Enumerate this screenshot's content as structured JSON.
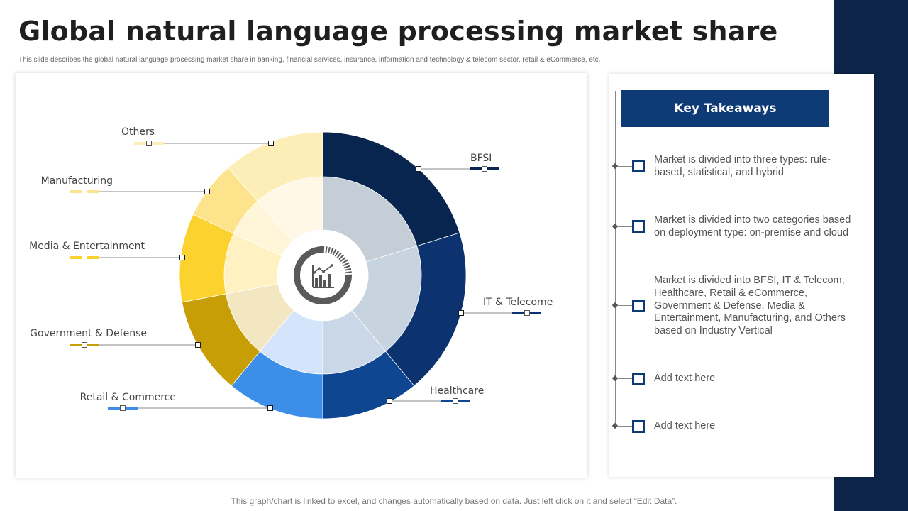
{
  "title": "Global natural language processing market share",
  "subtitle": "This slide describes the global natural language processing market share in banking,  financial services, insurance, information and technology & telecom sector, retail & eCommerce, etc.",
  "footer": "This graph/chart is linked to excel, and changes automatically based on data. Just left click on it and select “Edit Data”.",
  "center_icon": "chart-analytics-icon",
  "takeaways": {
    "title": "Key Takeaways",
    "items": [
      "Market is divided into three types: rule-based, statistical, and hybrid",
      "Market is divided into two categories based on deployment type: on-premise and cloud",
      "Market is divided into BFSI, IT & Telecom, Healthcare, Retail & eCommerce, Government & Defense, Media & Entertainment, Manufacturing, and Others based on Industry Vertical",
      "Add text here",
      "Add text here"
    ]
  },
  "chart_data": {
    "type": "pie",
    "variant": "sunburst",
    "series": [
      {
        "ring": "outer",
        "categories": [
          "BFSI",
          "IT & Telecome",
          "Healthcare",
          "Retail & Commerce",
          "Government & Defense",
          "Media & Entertainment",
          "Manufacturing",
          "Others"
        ],
        "values": [
          20.2,
          18.8,
          11.0,
          11.0,
          11.0,
          10.0,
          6.5,
          11.5
        ],
        "colors": [
          "#082550",
          "#0d3270",
          "#0e4691",
          "#3d8ee8",
          "#c79e05",
          "#fcd22f",
          "#fde38c",
          "#fdeeb8"
        ]
      },
      {
        "ring": "inner",
        "values": [
          20.2,
          18.8,
          11.0,
          11.0,
          11.0,
          10.0,
          6.5,
          11.5
        ],
        "colors": [
          "#c5cdd6",
          "#c7d3df",
          "#c9d7e6",
          "#d3e4fb",
          "#f2e7c0",
          "#fff1c2",
          "#fff5d9",
          "#fff8e6"
        ]
      }
    ]
  }
}
